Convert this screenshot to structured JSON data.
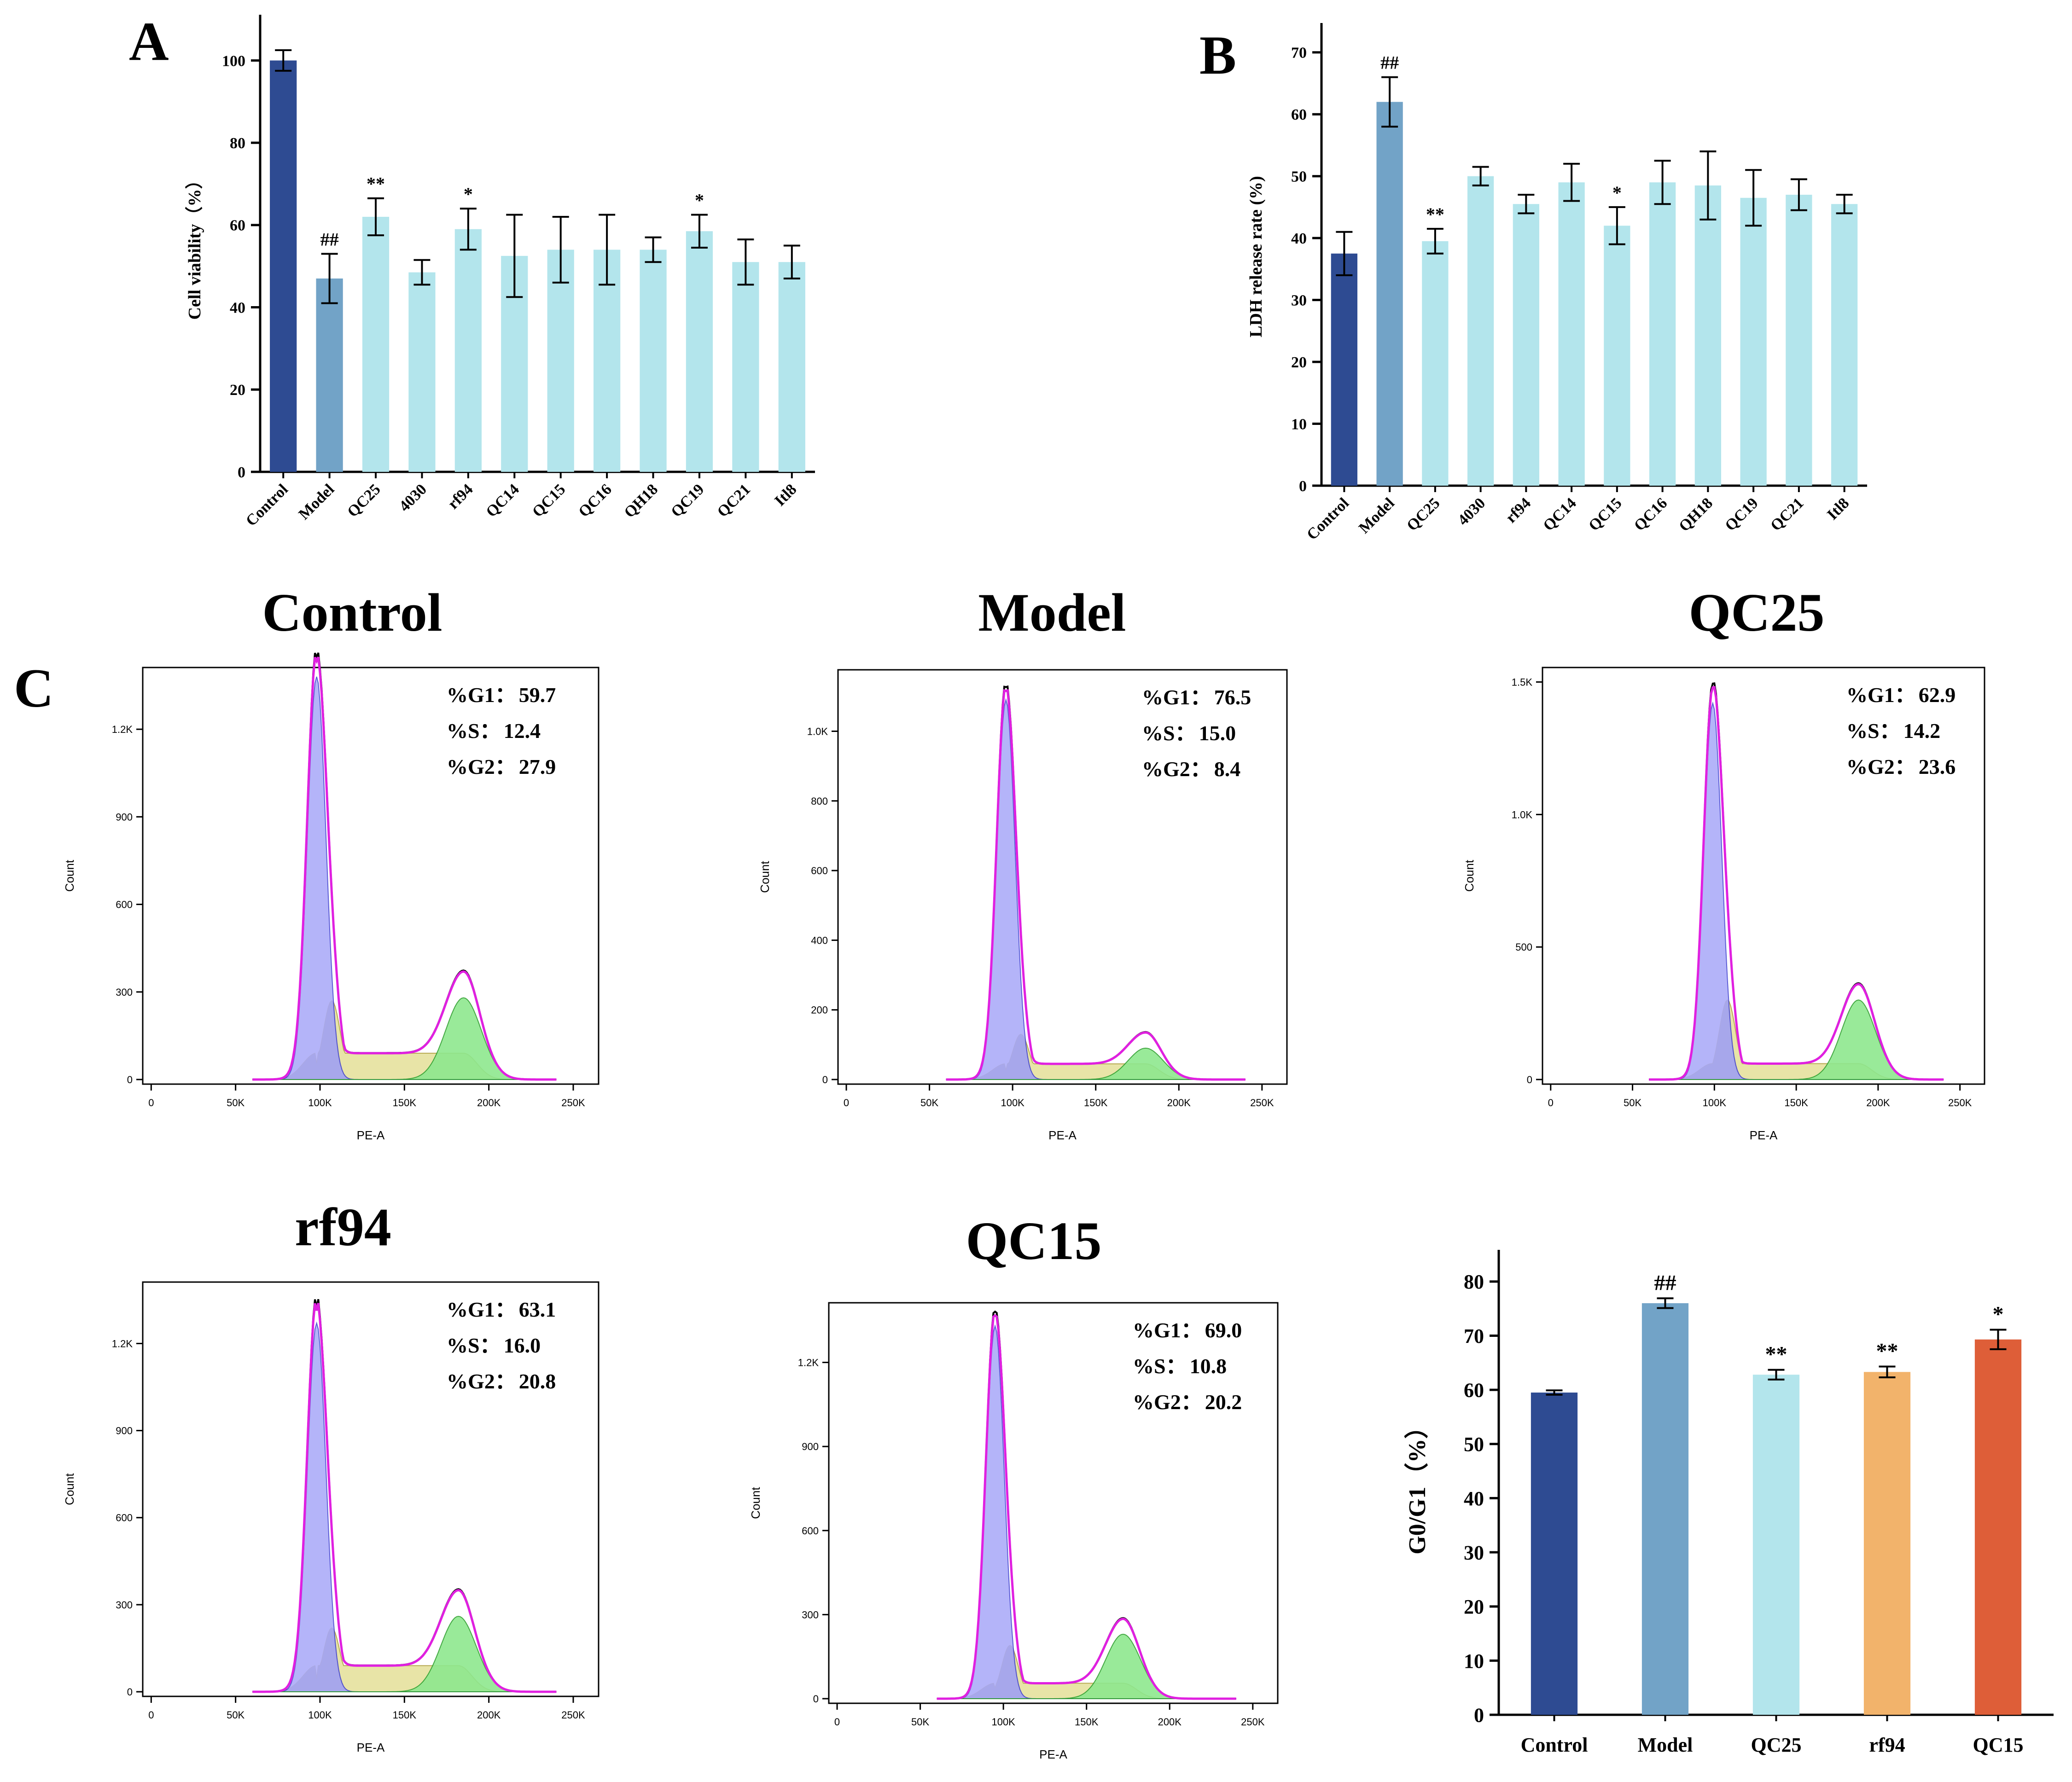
{
  "panel_letters": {
    "a": "A",
    "b": "B",
    "c": "C"
  },
  "colors": {
    "control": "#2e4b92",
    "model": "#72a3c7",
    "treat": "#b3e5ec",
    "rf94": "#f2b36b",
    "qc15": "#de5e38",
    "g1fill": "#a8a8f8",
    "sfill": "#e6e29e",
    "g2fill": "#8ee88e",
    "overlap": "#a6a6a6",
    "fitline": "#e020e0"
  },
  "chart_data": [
    {
      "id": "A",
      "type": "bar",
      "categories": [
        "Control",
        "Model",
        "QC25",
        "4030",
        "rf94",
        "QC14",
        "QC15",
        "QC16",
        "QH18",
        "QC19",
        "QC21",
        "Itl8"
      ],
      "values": [
        100,
        47,
        62,
        48.5,
        59,
        52.5,
        54,
        54,
        54,
        58.5,
        51,
        51
      ],
      "errors": [
        2.5,
        6,
        4.5,
        3,
        5,
        10,
        8,
        8.5,
        3,
        4,
        5.5,
        4
      ],
      "annotations": [
        "",
        "##",
        "**",
        "",
        "*",
        "",
        "",
        "",
        "",
        "*",
        "",
        ""
      ],
      "ylabel": "Cell viability（%）",
      "ylim": [
        0,
        110
      ],
      "yticks": [
        0,
        20,
        40,
        60,
        80,
        100
      ]
    },
    {
      "id": "B",
      "type": "bar",
      "categories": [
        "Control",
        "Model",
        "QC25",
        "4030",
        "rf94",
        "QC14",
        "QC15",
        "QC16",
        "QH18",
        "QC19",
        "QC21",
        "Itl8"
      ],
      "values": [
        37.5,
        62,
        39.5,
        50,
        45.5,
        49,
        42,
        49,
        48.5,
        46.5,
        47,
        45.5
      ],
      "errors": [
        3.5,
        4,
        2,
        1.5,
        1.5,
        3,
        3,
        3.5,
        5.5,
        4.5,
        2.5,
        1.5
      ],
      "annotations": [
        "",
        "##",
        "**",
        "",
        "",
        "",
        "*",
        "",
        "",
        "",
        "",
        ""
      ],
      "ylabel": "LDH release rate (%)",
      "ylim": [
        0,
        74
      ],
      "yticks": [
        0,
        10,
        20,
        30,
        40,
        50,
        60,
        70
      ]
    },
    {
      "id": "C-summary",
      "type": "bar",
      "categories": [
        "Control",
        "Model",
        "QC25",
        "rf94",
        "QC15"
      ],
      "values": [
        59.5,
        76,
        62.8,
        63.3,
        69.3
      ],
      "errors": [
        0.4,
        0.9,
        0.9,
        1.0,
        1.8
      ],
      "annotations": [
        "",
        "##",
        "**",
        "**",
        "*"
      ],
      "ylabel": "G0/G1（%）",
      "ylim": [
        0,
        85
      ],
      "yticks": [
        0,
        10,
        20,
        30,
        40,
        50,
        60,
        70,
        80
      ]
    }
  ],
  "histograms": [
    {
      "title": "Control",
      "g1": "59.7",
      "s": "12.4",
      "g2": "27.9",
      "yticks": [
        "0",
        "300",
        "600",
        "900",
        "1.2K"
      ],
      "ytick_values": [
        0,
        300,
        600,
        900,
        1200
      ],
      "ymax": 1380,
      "g1peak": 1380,
      "speak": 270,
      "g2peak": 280,
      "sbase": 90,
      "g2pos": 185
    },
    {
      "title": "Model",
      "g1": "76.5",
      "s": "15.0",
      "g2": "8.4",
      "yticks": [
        "0",
        "200",
        "400",
        "600",
        "800",
        "1.0K"
      ],
      "ytick_values": [
        0,
        200,
        400,
        600,
        800,
        1000
      ],
      "ymax": 1150,
      "g1peak": 1090,
      "speak": 130,
      "g2peak": 90,
      "sbase": 45,
      "g2pos": 180
    },
    {
      "title": "QC25",
      "g1": "62.9",
      "s": "14.2",
      "g2": "23.6",
      "yticks": [
        "0",
        "500",
        "1.0K",
        "1.5K"
      ],
      "ytick_values": [
        0,
        500,
        1000,
        1500
      ],
      "ymax": 1520,
      "g1peak": 1420,
      "speak": 300,
      "g2peak": 300,
      "sbase": 60,
      "g2pos": 188
    },
    {
      "title": "rf94",
      "g1": "63.1",
      "s": "16.0",
      "g2": "20.8",
      "yticks": [
        "0",
        "300",
        "600",
        "900",
        "1.2K"
      ],
      "ytick_values": [
        0,
        300,
        600,
        900,
        1200
      ],
      "ymax": 1380,
      "g1peak": 1270,
      "speak": 220,
      "g2peak": 260,
      "sbase": 90,
      "g2pos": 182
    },
    {
      "title": "QC15",
      "g1": "69.0",
      "s": "10.8",
      "g2": "20.2",
      "yticks": [
        "0",
        "300",
        "600",
        "900",
        "1.2K"
      ],
      "ytick_values": [
        0,
        300,
        600,
        900,
        1200
      ],
      "ymax": 1380,
      "g1peak": 1330,
      "speak": 190,
      "g2peak": 230,
      "sbase": 55,
      "g2pos": 172
    }
  ],
  "hist_labels": {
    "x_title": "PE-A",
    "y_title": "Count",
    "g1_label": "%G1：",
    "s_label": "%S：",
    "g2_label": "%G2：",
    "xticks": [
      "0",
      "50K",
      "100K",
      "150K",
      "200K",
      "250K"
    ]
  }
}
